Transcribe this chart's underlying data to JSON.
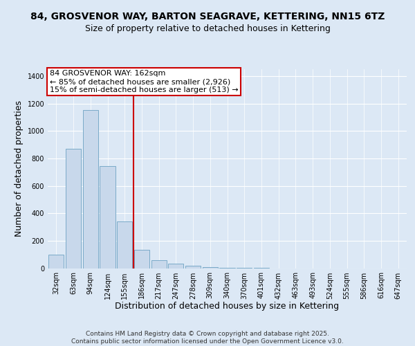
{
  "title": "84, GROSVENOR WAY, BARTON SEAGRAVE, KETTERING, NN15 6TZ",
  "subtitle": "Size of property relative to detached houses in Kettering",
  "xlabel": "Distribution of detached houses by size in Kettering",
  "ylabel": "Number of detached properties",
  "bin_labels": [
    "32sqm",
    "63sqm",
    "94sqm",
    "124sqm",
    "155sqm",
    "186sqm",
    "217sqm",
    "247sqm",
    "278sqm",
    "309sqm",
    "340sqm",
    "370sqm",
    "401sqm",
    "432sqm",
    "463sqm",
    "493sqm",
    "524sqm",
    "555sqm",
    "586sqm",
    "616sqm",
    "647sqm"
  ],
  "values": [
    100,
    870,
    1150,
    745,
    340,
    135,
    60,
    35,
    20,
    10,
    5,
    2,
    1,
    0,
    0,
    0,
    0,
    0,
    0,
    0,
    0
  ],
  "bar_color": "#c8d8eb",
  "bar_edge_color": "#7aaac8",
  "red_line_x": 4.5,
  "red_line_label": "84 GROSVENOR WAY: 162sqm",
  "annotation_line1": "← 85% of detached houses are smaller (2,926)",
  "annotation_line2": "15% of semi-detached houses are larger (513) →",
  "annotation_box_color": "#ffffff",
  "annotation_box_edge": "#cc0000",
  "red_line_color": "#cc0000",
  "ylim": [
    0,
    1450
  ],
  "yticks": [
    0,
    200,
    400,
    600,
    800,
    1000,
    1200,
    1400
  ],
  "background_color": "#dce8f5",
  "plot_bg_color": "#dce8f5",
  "grid_color": "#ffffff",
  "footer_line1": "Contains HM Land Registry data © Crown copyright and database right 2025.",
  "footer_line2": "Contains public sector information licensed under the Open Government Licence v3.0.",
  "title_fontsize": 10,
  "subtitle_fontsize": 9,
  "axis_label_fontsize": 9,
  "tick_fontsize": 7,
  "annot_fontsize": 8,
  "footer_fontsize": 6.5
}
